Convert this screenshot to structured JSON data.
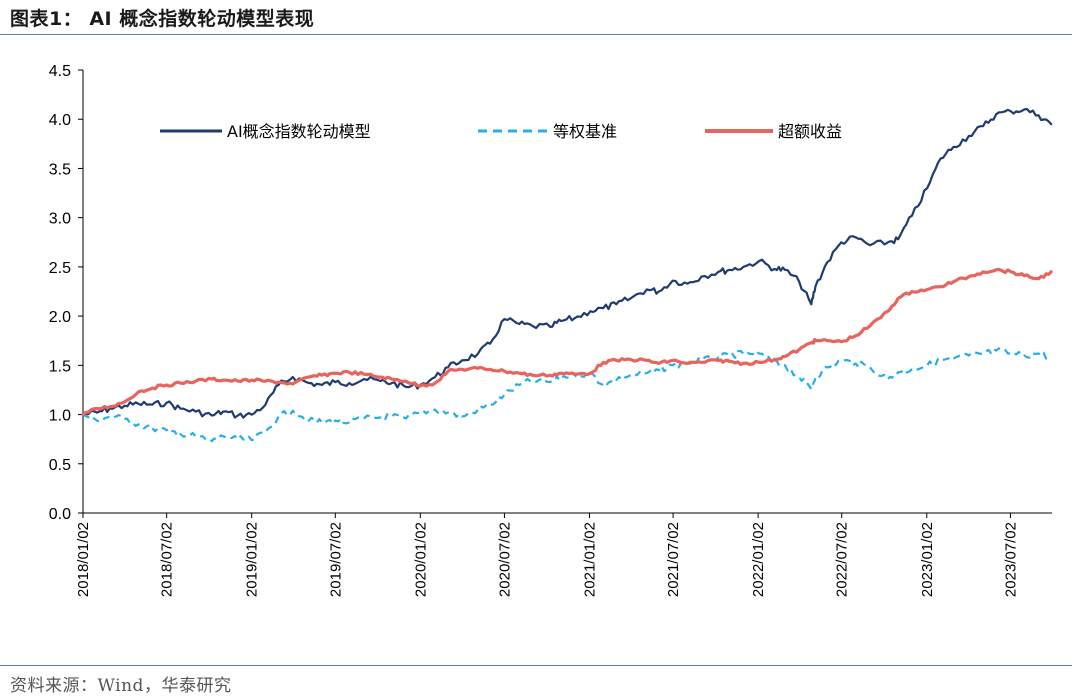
{
  "header": {
    "title": "图表1：  AI 概念指数轮动模型表现"
  },
  "footer": {
    "source": "资料来源：Wind，华泰研究"
  },
  "colors": {
    "model": "#1f3c70",
    "equal": "#27aee6",
    "excess": "#e8645f",
    "rule": "#5b7ea8"
  },
  "chart_data": {
    "type": "line",
    "title": "",
    "xlabel": "",
    "ylabel": "",
    "ylim": [
      0,
      4.5
    ],
    "yticks": [
      "0.0",
      "0.5",
      "1.0",
      "1.5",
      "2.0",
      "2.5",
      "3.0",
      "3.5",
      "4.0",
      "4.5"
    ],
    "xlim": [
      "2018/01/02",
      "2023/09/30"
    ],
    "xticks": [
      "2018/01/02",
      "2018/07/02",
      "2019/01/02",
      "2019/07/02",
      "2020/01/02",
      "2020/07/02",
      "2021/01/02",
      "2021/07/02",
      "2022/01/02",
      "2022/07/02",
      "2023/01/02",
      "2023/07/02"
    ],
    "legend_position": "top",
    "grid": false,
    "series": [
      {
        "name": "AI概念指数轮动模型",
        "style": "solid",
        "x": [
          "2018/01/02",
          "2018/02/01",
          "2018/03/01",
          "2018/04/02",
          "2018/05/02",
          "2018/06/01",
          "2018/07/02",
          "2018/08/01",
          "2018/09/03",
          "2018/10/08",
          "2018/11/01",
          "2018/12/03",
          "2019/01/02",
          "2019/02/01",
          "2019/03/01",
          "2019/04/01",
          "2019/05/06",
          "2019/06/03",
          "2019/07/02",
          "2019/08/01",
          "2019/09/02",
          "2019/10/08",
          "2019/11/01",
          "2019/12/02",
          "2020/01/02",
          "2020/02/03",
          "2020/03/02",
          "2020/04/01",
          "2020/05/06",
          "2020/06/01",
          "2020/07/02",
          "2020/08/03",
          "2020/09/01",
          "2020/10/09",
          "2020/11/02",
          "2020/12/01",
          "2021/01/04",
          "2021/02/01",
          "2021/03/01",
          "2021/04/01",
          "2021/05/06",
          "2021/06/01",
          "2021/07/01",
          "2021/08/02",
          "2021/09/01",
          "2021/10/08",
          "2021/11/01",
          "2021/12/01",
          "2022/01/04",
          "2022/02/07",
          "2022/03/01",
          "2022/04/01",
          "2022/04/27",
          "2022/05/06",
          "2022/06/01",
          "2022/07/01",
          "2022/08/01",
          "2022/09/01",
          "2022/10/10",
          "2022/11/01",
          "2022/12/01",
          "2023/01/03",
          "2023/02/01",
          "2023/03/01",
          "2023/04/03",
          "2023/05/04",
          "2023/06/01",
          "2023/07/03",
          "2023/08/01",
          "2023/09/01",
          "2023/09/28"
        ],
        "y": [
          1.0,
          1.02,
          1.06,
          1.09,
          1.11,
          1.1,
          1.12,
          1.06,
          1.03,
          0.99,
          1.03,
          0.99,
          1.0,
          1.1,
          1.3,
          1.38,
          1.32,
          1.3,
          1.33,
          1.32,
          1.36,
          1.34,
          1.32,
          1.28,
          1.3,
          1.38,
          1.48,
          1.55,
          1.62,
          1.72,
          1.97,
          1.92,
          1.9,
          1.89,
          1.95,
          1.98,
          2.05,
          2.08,
          2.12,
          2.18,
          2.27,
          2.25,
          2.36,
          2.33,
          2.4,
          2.45,
          2.47,
          2.5,
          2.56,
          2.48,
          2.47,
          2.35,
          2.12,
          2.3,
          2.55,
          2.75,
          2.8,
          2.72,
          2.75,
          2.78,
          3.02,
          3.3,
          3.6,
          3.72,
          3.83,
          3.93,
          4.05,
          4.08,
          4.1,
          4.04,
          3.95
        ]
      },
      {
        "name": "等权基准",
        "style": "dashed",
        "x": [
          "2018/01/02",
          "2018/02/01",
          "2018/03/01",
          "2018/04/02",
          "2018/05/02",
          "2018/06/01",
          "2018/07/02",
          "2018/08/01",
          "2018/09/03",
          "2018/10/08",
          "2018/11/01",
          "2018/12/03",
          "2019/01/02",
          "2019/02/01",
          "2019/03/01",
          "2019/04/01",
          "2019/05/06",
          "2019/06/03",
          "2019/07/02",
          "2019/08/01",
          "2019/09/02",
          "2019/10/08",
          "2019/11/01",
          "2019/12/02",
          "2020/01/02",
          "2020/02/03",
          "2020/03/02",
          "2020/04/01",
          "2020/05/06",
          "2020/06/01",
          "2020/07/02",
          "2020/08/03",
          "2020/09/01",
          "2020/10/09",
          "2020/11/02",
          "2020/12/01",
          "2021/01/04",
          "2021/02/01",
          "2021/03/01",
          "2021/04/01",
          "2021/05/06",
          "2021/06/01",
          "2021/07/01",
          "2021/08/02",
          "2021/09/01",
          "2021/10/08",
          "2021/11/01",
          "2021/12/01",
          "2022/01/04",
          "2022/02/07",
          "2022/03/01",
          "2022/04/01",
          "2022/04/27",
          "2022/05/06",
          "2022/06/01",
          "2022/07/01",
          "2022/08/01",
          "2022/09/01",
          "2022/10/10",
          "2022/11/01",
          "2022/12/01",
          "2023/01/03",
          "2023/02/01",
          "2023/03/01",
          "2023/04/03",
          "2023/05/04",
          "2023/06/01",
          "2023/07/03",
          "2023/08/01",
          "2023/09/01",
          "2023/09/28"
        ],
        "y": [
          1.0,
          0.94,
          0.98,
          0.96,
          0.9,
          0.86,
          0.84,
          0.8,
          0.78,
          0.73,
          0.78,
          0.75,
          0.74,
          0.82,
          0.98,
          1.04,
          0.94,
          0.92,
          0.94,
          0.92,
          0.96,
          0.97,
          0.98,
          0.96,
          1.02,
          1.05,
          1.02,
          0.98,
          1.05,
          1.1,
          1.2,
          1.3,
          1.35,
          1.33,
          1.38,
          1.4,
          1.42,
          1.3,
          1.35,
          1.4,
          1.42,
          1.45,
          1.5,
          1.52,
          1.55,
          1.58,
          1.6,
          1.62,
          1.62,
          1.52,
          1.5,
          1.38,
          1.26,
          1.38,
          1.48,
          1.55,
          1.52,
          1.48,
          1.36,
          1.43,
          1.46,
          1.5,
          1.55,
          1.57,
          1.6,
          1.62,
          1.65,
          1.62,
          1.6,
          1.62,
          1.58
        ]
      },
      {
        "name": "超额收益",
        "style": "solid",
        "x": [
          "2018/01/02",
          "2018/02/01",
          "2018/03/01",
          "2018/04/02",
          "2018/05/02",
          "2018/06/01",
          "2018/07/02",
          "2018/08/01",
          "2018/09/03",
          "2018/10/08",
          "2018/11/01",
          "2018/12/03",
          "2019/01/02",
          "2019/02/01",
          "2019/03/01",
          "2019/04/01",
          "2019/05/06",
          "2019/06/03",
          "2019/07/02",
          "2019/08/01",
          "2019/09/02",
          "2019/10/08",
          "2019/11/01",
          "2019/12/02",
          "2020/01/02",
          "2020/02/03",
          "2020/03/02",
          "2020/04/01",
          "2020/05/06",
          "2020/06/01",
          "2020/07/02",
          "2020/08/03",
          "2020/09/01",
          "2020/10/09",
          "2020/11/02",
          "2020/12/01",
          "2021/01/04",
          "2021/02/01",
          "2021/03/01",
          "2021/04/01",
          "2021/05/06",
          "2021/06/01",
          "2021/07/01",
          "2021/08/02",
          "2021/09/01",
          "2021/10/08",
          "2021/11/01",
          "2021/12/01",
          "2022/01/04",
          "2022/02/07",
          "2022/03/01",
          "2022/04/01",
          "2022/04/27",
          "2022/05/06",
          "2022/06/01",
          "2022/07/01",
          "2022/08/01",
          "2022/09/01",
          "2022/10/10",
          "2022/11/01",
          "2022/12/01",
          "2023/01/03",
          "2023/02/01",
          "2023/03/01",
          "2023/04/03",
          "2023/05/04",
          "2023/06/01",
          "2023/07/03",
          "2023/08/01",
          "2023/09/01",
          "2023/09/28"
        ],
        "y": [
          1.0,
          1.06,
          1.08,
          1.13,
          1.23,
          1.27,
          1.3,
          1.32,
          1.34,
          1.36,
          1.35,
          1.34,
          1.35,
          1.34,
          1.33,
          1.31,
          1.38,
          1.4,
          1.42,
          1.43,
          1.41,
          1.38,
          1.36,
          1.34,
          1.29,
          1.32,
          1.44,
          1.46,
          1.47,
          1.46,
          1.44,
          1.42,
          1.4,
          1.4,
          1.42,
          1.41,
          1.42,
          1.53,
          1.55,
          1.56,
          1.55,
          1.52,
          1.55,
          1.52,
          1.53,
          1.55,
          1.54,
          1.52,
          1.53,
          1.56,
          1.59,
          1.66,
          1.73,
          1.75,
          1.75,
          1.74,
          1.8,
          1.9,
          2.05,
          2.18,
          2.25,
          2.27,
          2.3,
          2.35,
          2.4,
          2.45,
          2.47,
          2.45,
          2.41,
          2.38,
          2.45
        ]
      }
    ]
  }
}
